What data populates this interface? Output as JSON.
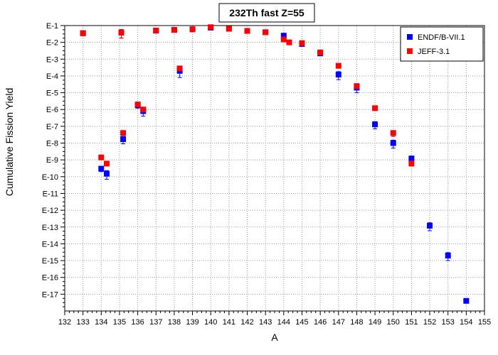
{
  "chart_data": {
    "type": "scatter",
    "title": "232Th fast Z=55",
    "xlabel": "A",
    "ylabel": "Cumulative Fission Yield",
    "xlim": [
      132,
      155
    ],
    "ylim_exponent": [
      -18,
      -1
    ],
    "y_scale": "log",
    "x_ticks": [
      "132",
      "133",
      "134",
      "135",
      "136",
      "137",
      "138",
      "139",
      "140",
      "141",
      "142",
      "143",
      "144",
      "145",
      "146",
      "147",
      "148",
      "149",
      "150",
      "151",
      "152",
      "153",
      "154",
      "155"
    ],
    "y_ticks": [
      "E-1",
      "E-2",
      "E-3",
      "E-4",
      "E-5",
      "E-6",
      "E-7",
      "E-8",
      "E-9",
      "E-10",
      "E-11",
      "E-12",
      "E-13",
      "E-14",
      "E-15",
      "E-16",
      "E-17"
    ],
    "grid": true,
    "legend_position": "top-right",
    "series": [
      {
        "name": "ENDF/B-VII.1",
        "color": "#0000ff",
        "marker": "square",
        "points": [
          {
            "x": 133,
            "y": 0.035
          },
          {
            "x": 134,
            "y": 3e-10,
            "err_low": 1e-10,
            "err_high": 1e-10
          },
          {
            "x": 134.3,
            "y": 1.5e-10,
            "err_low": 8e-11,
            "err_high": 8e-11
          },
          {
            "x": 135.2,
            "y": 1.7e-08,
            "err_low": 8e-09,
            "err_high": 8e-09
          },
          {
            "x": 136,
            "y": 1.8e-06,
            "err_low": 6e-07,
            "err_high": 6e-07
          },
          {
            "x": 136.3,
            "y": 8e-07,
            "err_low": 4e-07,
            "err_high": 4e-07
          },
          {
            "x": 138.3,
            "y": 0.0002,
            "err_low": 0.00012,
            "err_high": 0.00012
          },
          {
            "x": 140,
            "y": 0.075
          },
          {
            "x": 144,
            "y": 0.025
          },
          {
            "x": 145,
            "y": 0.008
          },
          {
            "x": 146,
            "y": 0.0022
          },
          {
            "x": 147,
            "y": 0.00012,
            "err_low": 6e-05,
            "err_high": 6e-05
          },
          {
            "x": 148,
            "y": 2e-05,
            "err_low": 1e-05,
            "err_high": 1e-05
          },
          {
            "x": 149,
            "y": 1.3e-07,
            "err_low": 6e-08,
            "err_high": 6e-08
          },
          {
            "x": 150,
            "y": 1e-08,
            "err_low": 5e-09,
            "err_high": 5e-09
          },
          {
            "x": 151,
            "y": 1.2e-09,
            "err_low": 5e-10,
            "err_high": 5e-10
          },
          {
            "x": 152,
            "y": 1.2e-13,
            "err_low": 6e-14,
            "err_high": 6e-14
          },
          {
            "x": 153,
            "y": 2e-15,
            "err_low": 1e-15,
            "err_high": 1e-15
          },
          {
            "x": 154,
            "y": 4e-18
          }
        ]
      },
      {
        "name": "JEFF-3.1",
        "color": "#ff0000",
        "marker": "square",
        "points": [
          {
            "x": 133,
            "y": 0.035
          },
          {
            "x": 134,
            "y": 1.4e-09
          },
          {
            "x": 134.3,
            "y": 6e-10
          },
          {
            "x": 135.2,
            "y": 4e-08
          },
          {
            "x": 136,
            "y": 2e-06
          },
          {
            "x": 136.3,
            "y": 1e-06
          },
          {
            "x": 138.3,
            "y": 0.00028
          },
          {
            "x": 140,
            "y": 0.08
          },
          {
            "x": 144,
            "y": 0.015
          },
          {
            "x": 144.3,
            "y": 0.01
          },
          {
            "x": 145,
            "y": 0.009
          },
          {
            "x": 146,
            "y": 0.0025
          },
          {
            "x": 147,
            "y": 0.0004
          },
          {
            "x": 148,
            "y": 2.5e-05
          },
          {
            "x": 149,
            "y": 1.2e-06
          },
          {
            "x": 150,
            "y": 4e-08,
            "err_low": 1.5e-08,
            "err_high": 1.5e-08
          },
          {
            "x": 151,
            "y": 6e-10
          }
        ]
      }
    ],
    "shared_points": [
      {
        "x": 135.1,
        "y": 0.038,
        "err_low": 0.02,
        "err_high": 0.02
      },
      {
        "x": 137,
        "y": 0.05
      },
      {
        "x": 138,
        "y": 0.055
      },
      {
        "x": 139,
        "y": 0.06
      },
      {
        "x": 141,
        "y": 0.065
      },
      {
        "x": 142,
        "y": 0.048
      },
      {
        "x": 143,
        "y": 0.04
      }
    ]
  }
}
